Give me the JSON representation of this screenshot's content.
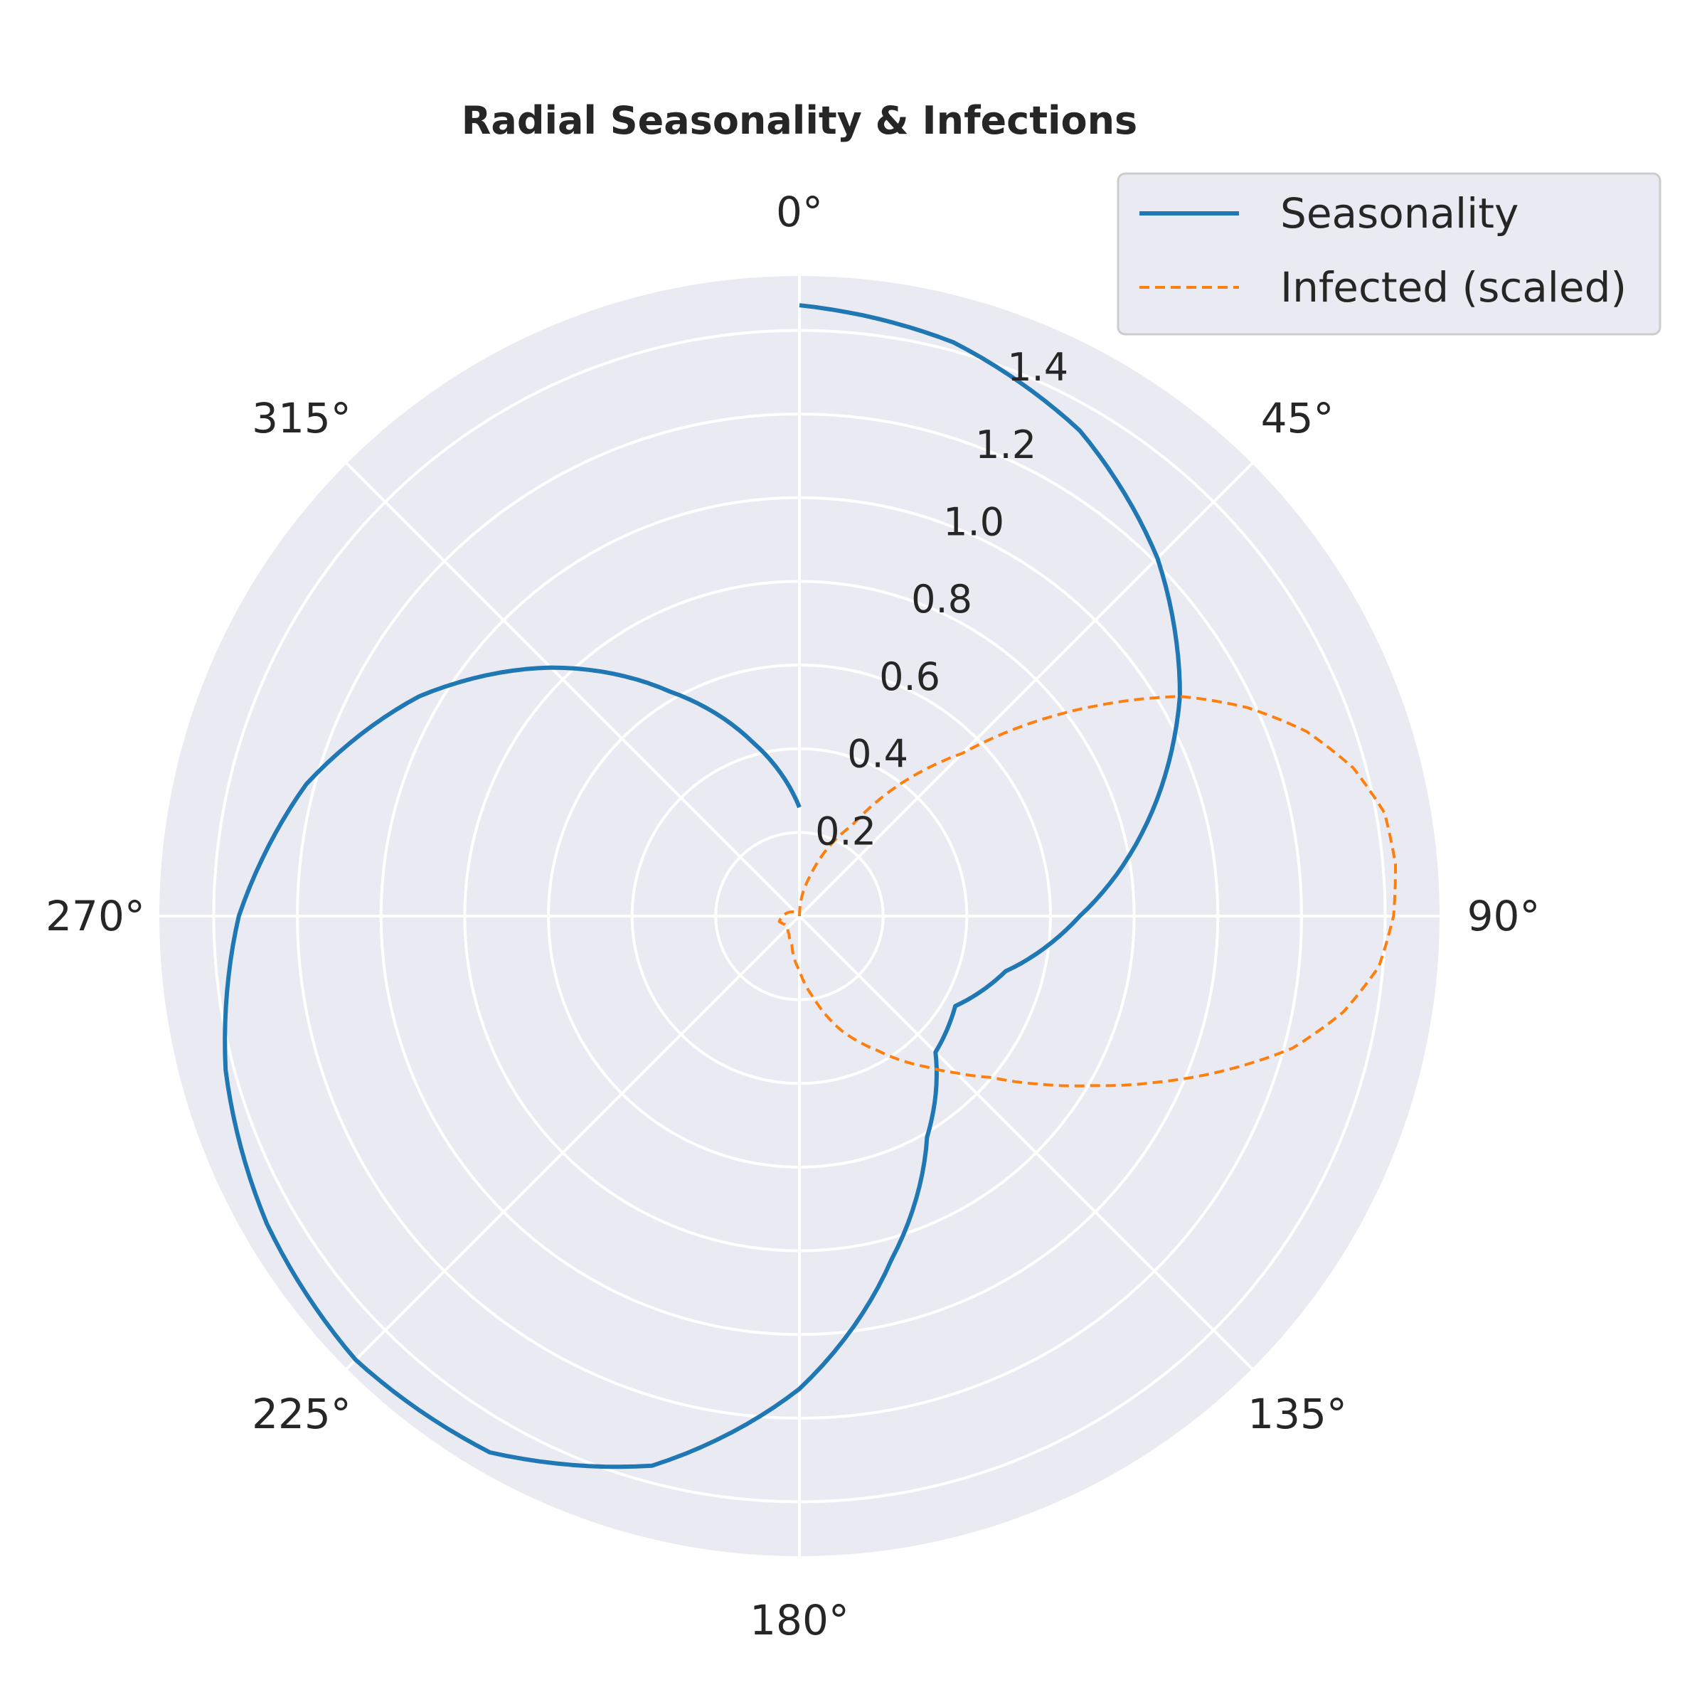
{
  "chart_data": {
    "type": "line",
    "projection": "polar",
    "title": "Radial Seasonality & Infections",
    "theta_zero_location": "N",
    "theta_direction": "clockwise",
    "theta_tick_labels": [
      "0°",
      "45°",
      "90°",
      "135°",
      "180°",
      "225°",
      "270°",
      "315°"
    ],
    "theta_ticks_deg": [
      0,
      45,
      90,
      135,
      180,
      225,
      270,
      315
    ],
    "r_ticks": [
      0.2,
      0.4,
      0.6,
      0.8,
      1.0,
      1.2,
      1.4
    ],
    "r_tick_labels": [
      "0.2",
      "0.4",
      "0.6",
      "0.8",
      "1.0",
      "1.2",
      "1.4"
    ],
    "rlim": [
      0,
      1.53
    ],
    "grid": true,
    "legend_position": "upper-right",
    "series": [
      {
        "name": "Seasonality",
        "style": "solid",
        "color": "#1f77b4",
        "theta_deg": [
          0,
          15,
          30,
          45,
          60,
          75,
          90,
          105,
          120,
          135,
          150,
          165,
          180,
          195,
          210,
          225,
          240,
          255,
          270,
          285,
          300,
          315,
          330,
          345,
          360
        ],
        "r": [
          1.46,
          1.42,
          1.34,
          1.21,
          1.05,
          0.86,
          0.67,
          0.51,
          0.43,
          0.46,
          0.61,
          0.85,
          1.13,
          1.36,
          1.48,
          1.5,
          1.47,
          1.42,
          1.34,
          1.22,
          1.05,
          0.84,
          0.62,
          0.43,
          0.26
        ]
      },
      {
        "name": "Infected (scaled)",
        "style": "dashed",
        "color": "#ff7f0e",
        "theta_deg": [
          0,
          15,
          30,
          45,
          55,
          60,
          65,
          70,
          75,
          80,
          85,
          90,
          95,
          100,
          105,
          110,
          115,
          120,
          125,
          130,
          135,
          140,
          145,
          150,
          160,
          170,
          180,
          195,
          210,
          225,
          240,
          255,
          270,
          300,
          330,
          360
        ],
        "r": [
          0.0,
          0.1,
          0.25,
          0.55,
          0.88,
          1.05,
          1.18,
          1.29,
          1.37,
          1.42,
          1.43,
          1.42,
          1.39,
          1.32,
          1.22,
          1.08,
          0.94,
          0.81,
          0.7,
          0.6,
          0.53,
          0.47,
          0.42,
          0.37,
          0.29,
          0.2,
          0.13,
          0.07,
          0.05,
          0.04,
          0.04,
          0.05,
          0.04,
          0.02,
          0.01,
          0.0
        ]
      }
    ]
  }
}
